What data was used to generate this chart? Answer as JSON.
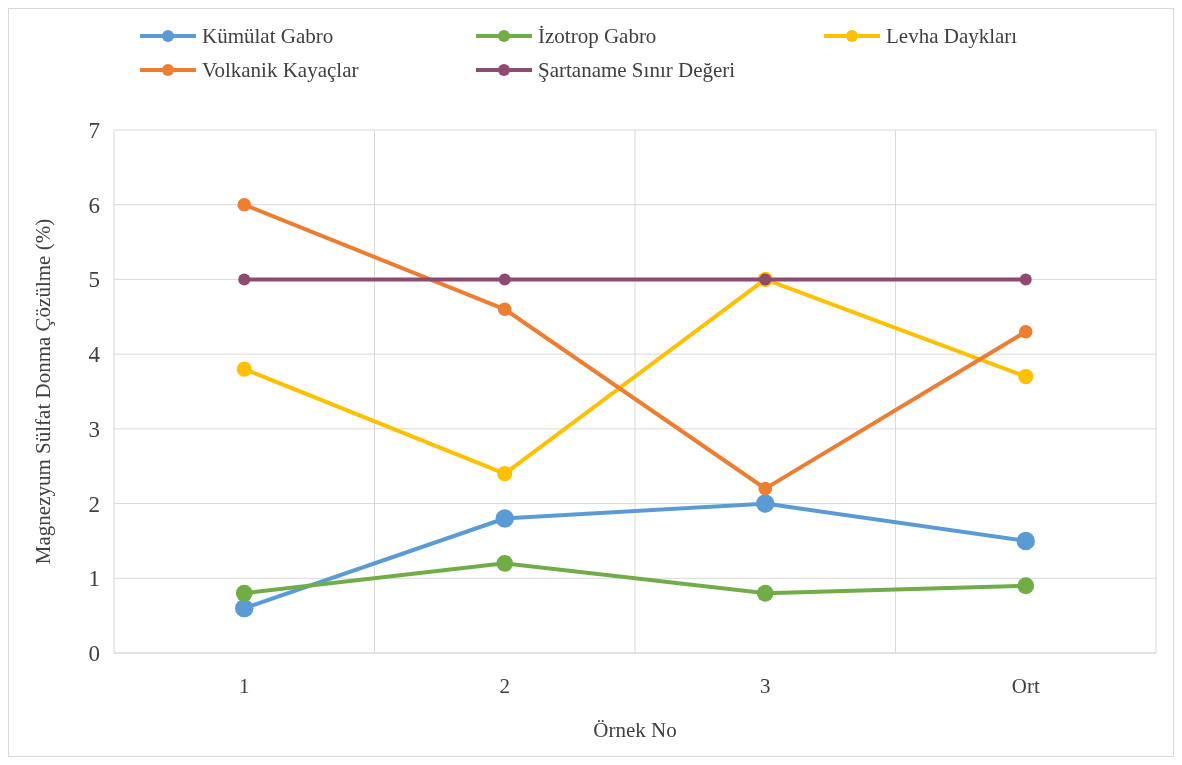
{
  "chart_data": {
    "type": "line",
    "xlabel": "Örnek No",
    "ylabel": "Magnezyum Sülfat Donma Çözülme (%)",
    "categories": [
      "1",
      "2",
      "3",
      "Ort"
    ],
    "ylim": [
      0,
      7
    ],
    "yticks": [
      0,
      1,
      2,
      3,
      4,
      5,
      6,
      7
    ],
    "grid": true,
    "legend": "top",
    "marker": "circle",
    "line_style": "solid",
    "series": [
      {
        "name": "Kümülat Gabro",
        "color": "#5b9bd5",
        "values": [
          0.6,
          1.8,
          2.0,
          1.5
        ]
      },
      {
        "name": "İzotrop Gabro",
        "color": "#70ad47",
        "values": [
          0.8,
          1.2,
          0.8,
          0.9
        ]
      },
      {
        "name": "Levha Daykları",
        "color": "#ffc000",
        "values": [
          3.8,
          2.4,
          5.0,
          3.7
        ]
      },
      {
        "name": "Volkanik Kayaçlar",
        "color": "#ed7d31",
        "values": [
          6.0,
          4.6,
          2.2,
          4.3
        ]
      },
      {
        "name": "Şartaname Sınır Değeri",
        "color": "#8e4a70",
        "values": [
          5,
          5,
          5,
          5
        ]
      }
    ]
  }
}
